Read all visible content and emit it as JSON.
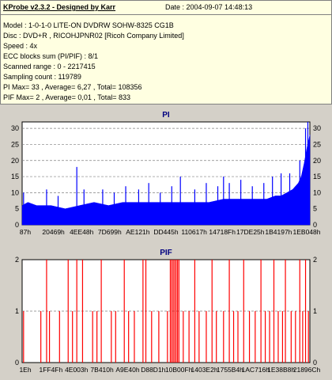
{
  "info": {
    "app_title": "KProbe v2.3.2 - Designed by Karr",
    "date_line": "Date : 2004-09-07 14:48:13",
    "lines": [
      "Model : 1-0-1-0 LITE-ON DVDRW SOHW-8325  CG1B",
      "Disc : DVD+R , RICOHJPNR02 [Ricoh Company Limited]",
      "Speed : 4x",
      "ECC blocks sum (PI/PIF) : 8/1",
      "Scanned range : 0 - 2217415",
      "Sampling count : 119789",
      "PI Max= 33 , Average= 6,27 , Total= 108356",
      "PIF Max= 2 , Average= 0,01 , Total= 833"
    ]
  },
  "colors": {
    "pi_fill": "#0000ff",
    "pif_line": "#ff0000",
    "plot_bg": "#ffffff",
    "grid": "#808080",
    "title": "#000080"
  },
  "chart_data": [
    {
      "type": "area",
      "title": "PI",
      "xlabel": "",
      "ylabel": "",
      "ylim": [
        0,
        32
      ],
      "yticks": [
        0,
        5,
        10,
        15,
        20,
        25,
        30
      ],
      "grid": true,
      "x_tick_labels": [
        "87h",
        "20469h",
        "4EE48h",
        "7D699h",
        "AE121h",
        "DD445h",
        "110617h",
        "14718Fh",
        "17DE25h",
        "1B4197h",
        "1EB048h"
      ],
      "x_range": [
        0,
        1
      ],
      "x": [
        0.0,
        0.02,
        0.05,
        0.1,
        0.15,
        0.2,
        0.25,
        0.3,
        0.35,
        0.4,
        0.45,
        0.5,
        0.55,
        0.6,
        0.65,
        0.7,
        0.75,
        0.8,
        0.85,
        0.88,
        0.9,
        0.92,
        0.94,
        0.96,
        0.97,
        0.98,
        0.99,
        1.0
      ],
      "values": [
        6,
        7,
        6,
        6,
        5,
        6,
        7,
        6,
        7,
        7,
        7,
        7,
        7,
        7,
        7,
        8,
        8,
        8,
        8,
        9,
        9,
        10,
        11,
        13,
        15,
        19,
        24,
        28
      ],
      "peaks": [
        {
          "x": 0.005,
          "y": 10
        },
        {
          "x": 0.085,
          "y": 11
        },
        {
          "x": 0.125,
          "y": 9
        },
        {
          "x": 0.19,
          "y": 18
        },
        {
          "x": 0.215,
          "y": 11
        },
        {
          "x": 0.28,
          "y": 11
        },
        {
          "x": 0.32,
          "y": 10
        },
        {
          "x": 0.36,
          "y": 12
        },
        {
          "x": 0.405,
          "y": 11
        },
        {
          "x": 0.44,
          "y": 13
        },
        {
          "x": 0.48,
          "y": 10
        },
        {
          "x": 0.52,
          "y": 12
        },
        {
          "x": 0.55,
          "y": 15
        },
        {
          "x": 0.6,
          "y": 11
        },
        {
          "x": 0.64,
          "y": 13
        },
        {
          "x": 0.68,
          "y": 12
        },
        {
          "x": 0.7,
          "y": 15
        },
        {
          "x": 0.72,
          "y": 13
        },
        {
          "x": 0.76,
          "y": 14
        },
        {
          "x": 0.8,
          "y": 12
        },
        {
          "x": 0.84,
          "y": 13
        },
        {
          "x": 0.87,
          "y": 15
        },
        {
          "x": 0.9,
          "y": 16
        },
        {
          "x": 0.93,
          "y": 16
        },
        {
          "x": 0.965,
          "y": 20
        },
        {
          "x": 0.985,
          "y": 30
        },
        {
          "x": 0.993,
          "y": 33
        }
      ]
    },
    {
      "type": "bar",
      "title": "PIF",
      "xlabel": "",
      "ylabel": "",
      "ylim": [
        0,
        2
      ],
      "yticks": [
        0,
        1,
        2
      ],
      "grid": true,
      "x_tick_labels": [
        "1Eh",
        "1FF4Fh",
        "4E003h",
        "7B410h",
        "A9E40h",
        "D88D1h",
        "10B00Fh",
        "1403E2h",
        "1755B4h",
        "1AC716h",
        "1E38B8h",
        "21896Ch"
      ],
      "x_range": [
        0,
        1
      ],
      "events": [
        {
          "x": 0.005,
          "y": 1
        },
        {
          "x": 0.065,
          "y": 1
        },
        {
          "x": 0.085,
          "y": 2
        },
        {
          "x": 0.095,
          "y": 1
        },
        {
          "x": 0.13,
          "y": 1
        },
        {
          "x": 0.16,
          "y": 2
        },
        {
          "x": 0.175,
          "y": 1
        },
        {
          "x": 0.19,
          "y": 2
        },
        {
          "x": 0.21,
          "y": 2
        },
        {
          "x": 0.245,
          "y": 1
        },
        {
          "x": 0.26,
          "y": 1
        },
        {
          "x": 0.275,
          "y": 2
        },
        {
          "x": 0.31,
          "y": 1
        },
        {
          "x": 0.325,
          "y": 1
        },
        {
          "x": 0.355,
          "y": 2
        },
        {
          "x": 0.37,
          "y": 1
        },
        {
          "x": 0.39,
          "y": 1
        },
        {
          "x": 0.42,
          "y": 2
        },
        {
          "x": 0.43,
          "y": 2
        },
        {
          "x": 0.45,
          "y": 1
        },
        {
          "x": 0.475,
          "y": 1
        },
        {
          "x": 0.505,
          "y": 1
        },
        {
          "x": 0.515,
          "y": 2
        },
        {
          "x": 0.52,
          "y": 2
        },
        {
          "x": 0.525,
          "y": 2
        },
        {
          "x": 0.53,
          "y": 2
        },
        {
          "x": 0.535,
          "y": 2
        },
        {
          "x": 0.54,
          "y": 2
        },
        {
          "x": 0.545,
          "y": 2
        },
        {
          "x": 0.56,
          "y": 1
        },
        {
          "x": 0.58,
          "y": 1
        },
        {
          "x": 0.6,
          "y": 2
        },
        {
          "x": 0.615,
          "y": 1
        },
        {
          "x": 0.64,
          "y": 1
        },
        {
          "x": 0.66,
          "y": 2
        },
        {
          "x": 0.675,
          "y": 1
        },
        {
          "x": 0.7,
          "y": 1
        },
        {
          "x": 0.72,
          "y": 2
        },
        {
          "x": 0.735,
          "y": 1
        },
        {
          "x": 0.75,
          "y": 1
        },
        {
          "x": 0.77,
          "y": 2
        },
        {
          "x": 0.79,
          "y": 1
        },
        {
          "x": 0.81,
          "y": 1
        },
        {
          "x": 0.83,
          "y": 2
        },
        {
          "x": 0.845,
          "y": 1
        },
        {
          "x": 0.86,
          "y": 1
        },
        {
          "x": 0.875,
          "y": 2
        },
        {
          "x": 0.89,
          "y": 1
        },
        {
          "x": 0.905,
          "y": 1
        },
        {
          "x": 0.915,
          "y": 2
        },
        {
          "x": 0.935,
          "y": 1
        },
        {
          "x": 0.95,
          "y": 1
        },
        {
          "x": 0.965,
          "y": 2
        },
        {
          "x": 0.975,
          "y": 1
        },
        {
          "x": 0.985,
          "y": 2
        },
        {
          "x": 0.995,
          "y": 1
        }
      ]
    }
  ]
}
